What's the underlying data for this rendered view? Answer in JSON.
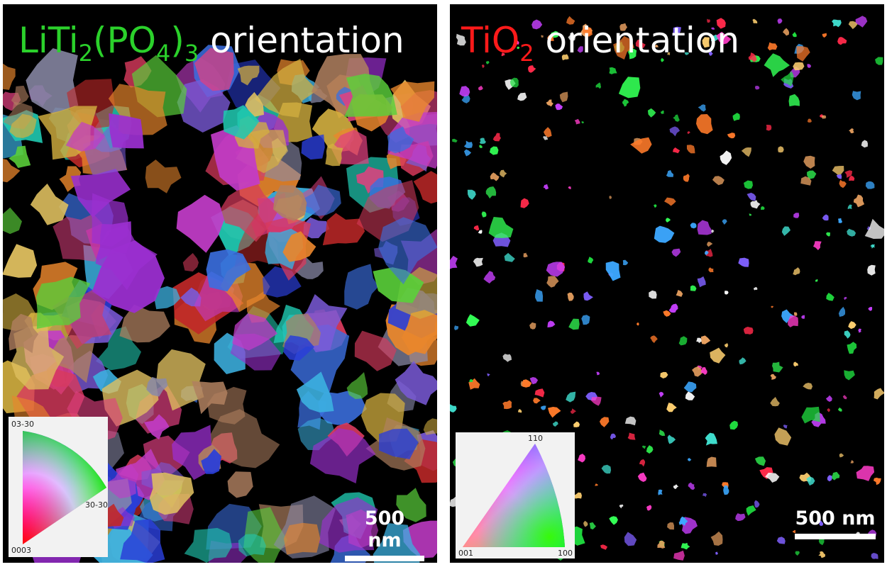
{
  "left_panel": {
    "title_parts": {
      "li": "LiTi",
      "sub1": "2",
      "mid": "(PO",
      "sub2": "4",
      "close": ")",
      "sub3": "3",
      "word": " orientation"
    },
    "title_color": "#2bd12b",
    "legend": {
      "top": "03-30",
      "right": "30-30",
      "bottom": "0003"
    },
    "scalebar": "500 nm"
  },
  "right_panel": {
    "title_parts": {
      "formula": "TiO",
      "sub": "2",
      "word": " orientation"
    },
    "title_color": "#ff1a1a",
    "legend": {
      "top": "110",
      "left": "001",
      "right": "100"
    },
    "scalebar": "500 nm"
  },
  "colors": {
    "background": "#000000",
    "text": "#ffffff"
  }
}
